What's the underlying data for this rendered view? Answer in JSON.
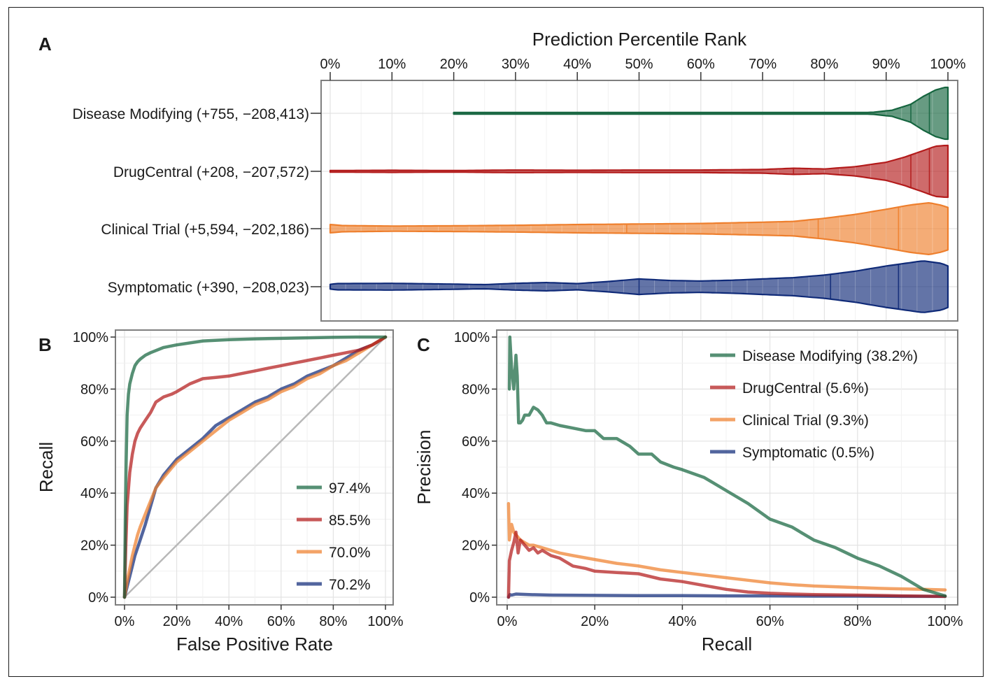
{
  "colors": {
    "disease_modifying": "#15653f",
    "drugcentral": "#b31b1b",
    "clinical_trial": "#ee7f2d",
    "symptomatic": "#0f2a78",
    "diagonal": "#b8b8b8"
  },
  "chart_data": [
    {
      "panel": "A",
      "type": "violin",
      "title": "Prediction Percentile Rank",
      "x_ticks": [
        "0%",
        "10%",
        "20%",
        "30%",
        "40%",
        "50%",
        "60%",
        "70%",
        "80%",
        "90%",
        "100%"
      ],
      "xlim": [
        0,
        100
      ],
      "series": [
        {
          "key": "disease_modifying",
          "label": "Disease Modifying (+755, −208,413)",
          "min": 20,
          "max": 100,
          "quantiles": [
            94,
            97
          ],
          "density": [
            [
              20,
              0.002
            ],
            [
              60,
              0.004
            ],
            [
              75,
              0.008
            ],
            [
              85,
              0.02
            ],
            [
              88,
              0.04
            ],
            [
              91,
              0.12
            ],
            [
              94,
              0.35
            ],
            [
              96,
              0.65
            ],
            [
              98,
              0.9
            ],
            [
              99.5,
              1
            ],
            [
              100,
              1
            ]
          ]
        },
        {
          "key": "drugcentral",
          "label": "DrugCentral (+208, −207,572)",
          "min": 0,
          "max": 100,
          "quantiles": [
            75,
            94,
            97
          ],
          "density": [
            [
              0,
              0.03
            ],
            [
              10,
              0.04
            ],
            [
              20,
              0.03
            ],
            [
              30,
              0.05
            ],
            [
              40,
              0.04
            ],
            [
              50,
              0.05
            ],
            [
              60,
              0.05
            ],
            [
              70,
              0.07
            ],
            [
              75,
              0.12
            ],
            [
              80,
              0.09
            ],
            [
              85,
              0.18
            ],
            [
              90,
              0.35
            ],
            [
              93,
              0.55
            ],
            [
              96,
              0.8
            ],
            [
              98,
              0.97
            ],
            [
              99.5,
              1
            ],
            [
              100,
              1
            ]
          ]
        },
        {
          "key": "clinical_trial",
          "label": "Clinical Trial (+5,594, −202,186)",
          "min": 0,
          "max": 100,
          "quantiles": [
            48,
            79,
            92
          ],
          "density": [
            [
              0,
              0.16
            ],
            [
              2,
              0.12
            ],
            [
              10,
              0.1
            ],
            [
              20,
              0.11
            ],
            [
              30,
              0.13
            ],
            [
              40,
              0.16
            ],
            [
              50,
              0.18
            ],
            [
              60,
              0.2
            ],
            [
              70,
              0.25
            ],
            [
              75,
              0.28
            ],
            [
              80,
              0.4
            ],
            [
              85,
              0.55
            ],
            [
              90,
              0.75
            ],
            [
              94,
              0.92
            ],
            [
              97,
              1
            ],
            [
              99,
              0.9
            ],
            [
              100,
              0.82
            ]
          ]
        },
        {
          "key": "symptomatic",
          "label": "Symptomatic (+390, −208,023)",
          "min": 0,
          "max": 100,
          "quantiles": [
            50,
            81,
            92
          ],
          "density": [
            [
              0,
              0.09
            ],
            [
              1,
              0.12
            ],
            [
              10,
              0.13
            ],
            [
              20,
              0.1
            ],
            [
              25,
              0.08
            ],
            [
              30,
              0.13
            ],
            [
              35,
              0.16
            ],
            [
              40,
              0.12
            ],
            [
              45,
              0.2
            ],
            [
              50,
              0.3
            ],
            [
              55,
              0.24
            ],
            [
              60,
              0.22
            ],
            [
              65,
              0.25
            ],
            [
              70,
              0.3
            ],
            [
              75,
              0.35
            ],
            [
              80,
              0.45
            ],
            [
              85,
              0.6
            ],
            [
              90,
              0.8
            ],
            [
              93,
              0.9
            ],
            [
              96,
              1
            ],
            [
              99,
              0.9
            ],
            [
              100,
              0.8
            ]
          ]
        }
      ]
    },
    {
      "panel": "B",
      "type": "line",
      "xlabel": "False Positive Rate",
      "ylabel": "Recall",
      "xlim": [
        0,
        100
      ],
      "ylim": [
        0,
        100
      ],
      "ticks": [
        "0%",
        "20%",
        "40%",
        "60%",
        "80%",
        "100%"
      ],
      "series": [
        {
          "key": "disease_modifying",
          "name": "97.4%",
          "x": [
            0,
            0.3,
            0.6,
            1,
            1.5,
            2,
            3,
            4,
            5,
            6,
            8,
            10,
            15,
            20,
            30,
            40,
            50,
            60,
            70,
            80,
            90,
            100
          ],
          "y": [
            0,
            30,
            50,
            70,
            78,
            82,
            86,
            89,
            90.5,
            91.5,
            93,
            94,
            96,
            97,
            98.5,
            99,
            99.3,
            99.5,
            99.7,
            99.9,
            100,
            100
          ]
        },
        {
          "key": "drugcentral",
          "name": "85.5%",
          "x": [
            0,
            0.5,
            1,
            2,
            3,
            4,
            5,
            6,
            8,
            10,
            12,
            15,
            18,
            20,
            25,
            30,
            35,
            40,
            45,
            50,
            55,
            60,
            65,
            70,
            75,
            80,
            85,
            90,
            95,
            100
          ],
          "y": [
            0,
            20,
            35,
            48,
            55,
            60,
            63,
            65,
            68,
            71,
            75,
            77,
            78,
            79,
            82,
            84,
            84.5,
            85,
            86,
            87,
            88,
            89,
            90,
            91,
            92,
            93,
            94,
            95,
            97,
            100
          ]
        },
        {
          "key": "clinical_trial",
          "name": "70.0%",
          "x": [
            0,
            1,
            2,
            3,
            4,
            5,
            6,
            8,
            10,
            12,
            15,
            20,
            25,
            30,
            35,
            40,
            45,
            50,
            55,
            60,
            65,
            70,
            75,
            80,
            85,
            90,
            95,
            100
          ],
          "y": [
            0,
            6,
            11,
            16,
            20,
            24,
            27,
            32,
            37,
            42,
            46,
            52,
            56,
            60,
            64,
            68,
            71,
            74,
            76,
            79,
            81,
            84,
            86,
            89,
            91,
            94,
            97,
            100
          ]
        },
        {
          "key": "symptomatic",
          "name": "70.2%",
          "x": [
            0,
            1,
            2,
            3,
            4,
            5,
            6,
            8,
            10,
            12,
            15,
            20,
            25,
            30,
            35,
            40,
            45,
            50,
            55,
            60,
            65,
            70,
            75,
            80,
            85,
            90,
            95,
            100
          ],
          "y": [
            0,
            4,
            8,
            12,
            16,
            19,
            22,
            28,
            35,
            42,
            47,
            53,
            57,
            61,
            66,
            69,
            72,
            75,
            77,
            80,
            82,
            85,
            87,
            89,
            92,
            95,
            97,
            100
          ]
        }
      ]
    },
    {
      "panel": "C",
      "type": "line",
      "xlabel": "Recall",
      "ylabel": "Precision",
      "xlim": [
        0,
        100
      ],
      "ylim": [
        0,
        100
      ],
      "ticks": [
        "0%",
        "20%",
        "40%",
        "60%",
        "80%",
        "100%"
      ],
      "series": [
        {
          "key": "disease_modifying",
          "name": "Disease Modifying (38.2%)",
          "x": [
            0.5,
            0.6,
            1,
            1.5,
            2,
            2.3,
            2.6,
            3,
            3.5,
            4,
            5,
            6,
            7,
            8,
            9,
            10,
            12,
            15,
            18,
            20,
            22,
            25,
            28,
            30,
            33,
            35,
            38,
            40,
            45,
            50,
            55,
            60,
            65,
            70,
            75,
            80,
            85,
            90,
            95,
            100
          ],
          "y": [
            80,
            100,
            88,
            80,
            93,
            85,
            67,
            67,
            68,
            70,
            70,
            73,
            72,
            70,
            67,
            67,
            66,
            65,
            64,
            64,
            61,
            61,
            58,
            55,
            55,
            52,
            50,
            49,
            46,
            41,
            36,
            30,
            27,
            22,
            19,
            15,
            12,
            8,
            3,
            0.5
          ]
        },
        {
          "key": "drugcentral",
          "name": "DrugCentral (5.6%)",
          "x": [
            0.3,
            0.5,
            1,
            1.5,
            2,
            2.5,
            3,
            4,
            5,
            6,
            7,
            8,
            10,
            12,
            15,
            18,
            20,
            25,
            30,
            35,
            40,
            45,
            50,
            55,
            60,
            65,
            70,
            80,
            90,
            100
          ],
          "y": [
            0,
            14,
            18,
            21,
            25,
            17,
            22,
            20,
            18,
            19,
            17,
            18,
            16,
            15,
            12,
            11,
            10,
            9.5,
            9,
            7,
            6,
            4.5,
            3,
            2,
            1.5,
            1.2,
            1,
            0.8,
            0.5,
            0.3
          ]
        },
        {
          "key": "clinical_trial",
          "name": "Clinical Trial (9.3%)",
          "x": [
            0.3,
            0.5,
            1,
            1.5,
            2,
            3,
            4,
            5,
            6,
            8,
            10,
            12,
            15,
            20,
            25,
            30,
            35,
            40,
            45,
            50,
            55,
            60,
            65,
            70,
            75,
            80,
            85,
            90,
            95,
            100
          ],
          "y": [
            36,
            22,
            28,
            25,
            24,
            22,
            21,
            20,
            20,
            19,
            18,
            17,
            16,
            14.5,
            13,
            12,
            10.5,
            9.5,
            8.5,
            7.5,
            6.5,
            5.5,
            4.8,
            4.3,
            4,
            3.7,
            3.4,
            3.2,
            3,
            2.8
          ]
        },
        {
          "key": "symptomatic",
          "name": "Symptomatic (0.5%)",
          "x": [
            0.3,
            0.6,
            1,
            2,
            5,
            10,
            20,
            30,
            40,
            50,
            60,
            70,
            80,
            90,
            100
          ],
          "y": [
            0,
            1,
            0.8,
            1.2,
            1,
            0.8,
            0.7,
            0.6,
            0.6,
            0.5,
            0.5,
            0.4,
            0.4,
            0.3,
            0.3
          ]
        }
      ]
    }
  ],
  "panels": {
    "a": "A",
    "b": "B",
    "c": "C"
  }
}
